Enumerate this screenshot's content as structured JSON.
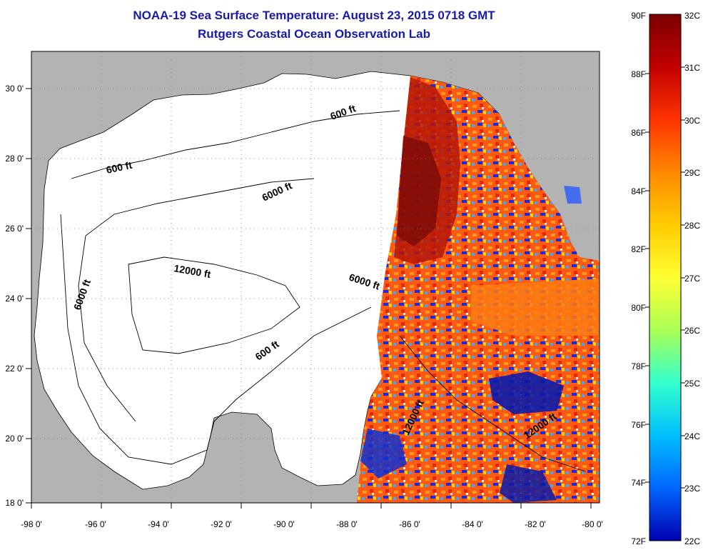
{
  "title": {
    "line1": "NOAA-19 Sea Surface Temperature:  August 23, 2015 0718 GMT",
    "line2": "Rutgers Coastal Ocean Observation Lab"
  },
  "map": {
    "lon_labels": [
      "-98 0'",
      "-96 0'",
      "-94 0'",
      "-92 0'",
      "-90 0'",
      "-88 0'",
      "-86 0'",
      "-84 0'",
      "-82 0'",
      "-80 0'"
    ],
    "lat_labels": [
      "30 0'",
      "28 0'",
      "26 0'",
      "24 0'",
      "22 0'",
      "20 0'",
      "18 0'"
    ],
    "contour_labels": [
      "600 ft",
      "600 ft",
      "6000 ft",
      "6000 ft",
      "6000 ft",
      "12000 ft",
      "600 ft",
      "12000 ft",
      "12000 ft"
    ],
    "colors": {
      "land": "#b3b3b3",
      "nodata": "#ffffff",
      "frame": "#000000"
    }
  },
  "colorbar": {
    "fahrenheit": [
      "90F",
      "88F",
      "86F",
      "84F",
      "82F",
      "80F",
      "78F",
      "76F",
      "74F",
      "72F"
    ],
    "celsius": [
      "32C",
      "31C",
      "30C",
      "29C",
      "28C",
      "27C",
      "26C",
      "25C",
      "24C",
      "23C",
      "22C"
    ],
    "gradient_stops": [
      "#7a0000",
      "#c20000",
      "#ff3300",
      "#ff8800",
      "#ffcc00",
      "#ffff33",
      "#aaff55",
      "#33ffcc",
      "#00bfff",
      "#0066ff",
      "#0000b0"
    ]
  }
}
